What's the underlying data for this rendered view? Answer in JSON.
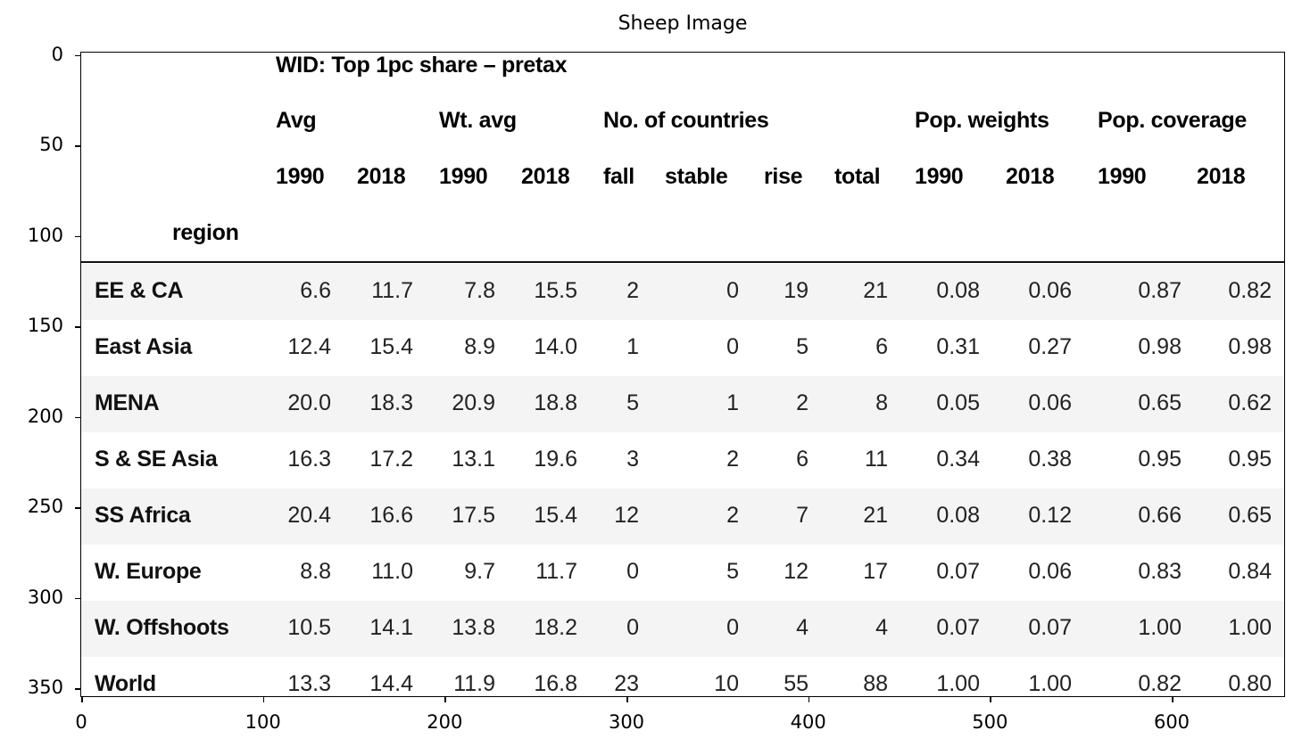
{
  "title": "Sheep Image",
  "table": {
    "title": "WID: Top 1pc share – pretax",
    "groups": [
      "Avg",
      "Wt. avg",
      "No. of countries",
      "Pop. weights",
      "Pop. coverage"
    ],
    "columns": [
      "1990",
      "2018",
      "1990",
      "2018",
      "fall",
      "stable",
      "rise",
      "total",
      "1990",
      "2018",
      "1990",
      "2018"
    ],
    "index_name": "region",
    "rows": [
      {
        "region": "EE & CA",
        "values": [
          "6.6",
          "11.7",
          "7.8",
          "15.5",
          "2",
          "0",
          "19",
          "21",
          "0.08",
          "0.06",
          "0.87",
          "0.82"
        ]
      },
      {
        "region": "East Asia",
        "values": [
          "12.4",
          "15.4",
          "8.9",
          "14.0",
          "1",
          "0",
          "5",
          "6",
          "0.31",
          "0.27",
          "0.98",
          "0.98"
        ]
      },
      {
        "region": "MENA",
        "values": [
          "20.0",
          "18.3",
          "20.9",
          "18.8",
          "5",
          "1",
          "2",
          "8",
          "0.05",
          "0.06",
          "0.65",
          "0.62"
        ]
      },
      {
        "region": "S & SE Asia",
        "values": [
          "16.3",
          "17.2",
          "13.1",
          "19.6",
          "3",
          "2",
          "6",
          "11",
          "0.34",
          "0.38",
          "0.95",
          "0.95"
        ]
      },
      {
        "region": "SS Africa",
        "values": [
          "20.4",
          "16.6",
          "17.5",
          "15.4",
          "12",
          "2",
          "7",
          "21",
          "0.08",
          "0.12",
          "0.66",
          "0.65"
        ]
      },
      {
        "region": "W. Europe",
        "values": [
          "8.8",
          "11.0",
          "9.7",
          "11.7",
          "0",
          "5",
          "12",
          "17",
          "0.07",
          "0.06",
          "0.83",
          "0.84"
        ]
      },
      {
        "region": "W. Offshoots",
        "values": [
          "10.5",
          "14.1",
          "13.8",
          "18.2",
          "0",
          "0",
          "4",
          "4",
          "0.07",
          "0.07",
          "1.00",
          "1.00"
        ]
      },
      {
        "region": "World",
        "values": [
          "13.3",
          "14.4",
          "11.9",
          "16.8",
          "23",
          "10",
          "55",
          "88",
          "1.00",
          "1.00",
          "0.82",
          "0.80"
        ]
      }
    ]
  },
  "axes": {
    "yticks": [
      "0",
      "50",
      "100",
      "150",
      "200",
      "250",
      "300",
      "350"
    ],
    "xticks": [
      "0",
      "100",
      "200",
      "300",
      "400",
      "500",
      "600"
    ]
  }
}
